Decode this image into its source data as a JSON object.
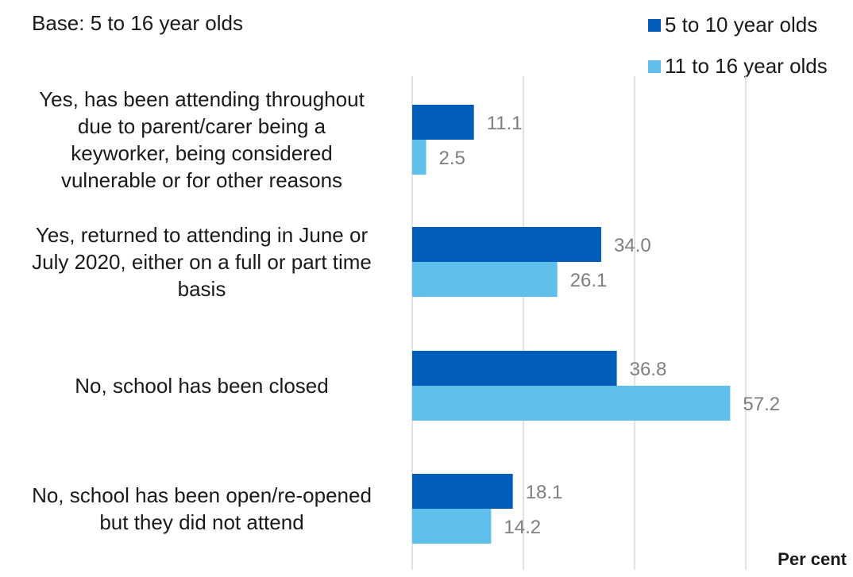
{
  "subtitle": "Base: 5 to 16 year olds",
  "unit_label": "Per cent",
  "colors": {
    "series1": "#005eb8",
    "series2": "#5ec0ea",
    "grid": "#d9d9d9",
    "value_label": "#7f7f7f",
    "category_label": "#1a1a1a"
  },
  "chart_data": {
    "type": "bar",
    "orientation": "horizontal",
    "categories": [
      [
        "Yes, has been attending throughout",
        "due to parent/carer being a",
        "keyworker, being considered",
        "vulnerable or for other reasons"
      ],
      [
        "Yes, returned to attending in June or",
        "July 2020, either on a full or part time",
        "basis"
      ],
      [
        "No, school has been closed"
      ],
      [
        "No, school has been open/re-opened",
        "but they did not attend"
      ]
    ],
    "series": [
      {
        "name": "5 to 10 year olds",
        "values": [
          11.1,
          34.0,
          36.8,
          18.1
        ],
        "labels": [
          "11.1",
          "34.0",
          "36.8",
          "18.1"
        ]
      },
      {
        "name": "11 to 16 year olds",
        "values": [
          2.5,
          26.1,
          57.2,
          14.2
        ],
        "labels": [
          "2.5",
          "26.1",
          "57.2",
          "14.2"
        ]
      }
    ],
    "xlim": [
      0,
      80
    ],
    "grid": true,
    "legend_position": "top-right",
    "xlabel": "Per cent"
  }
}
